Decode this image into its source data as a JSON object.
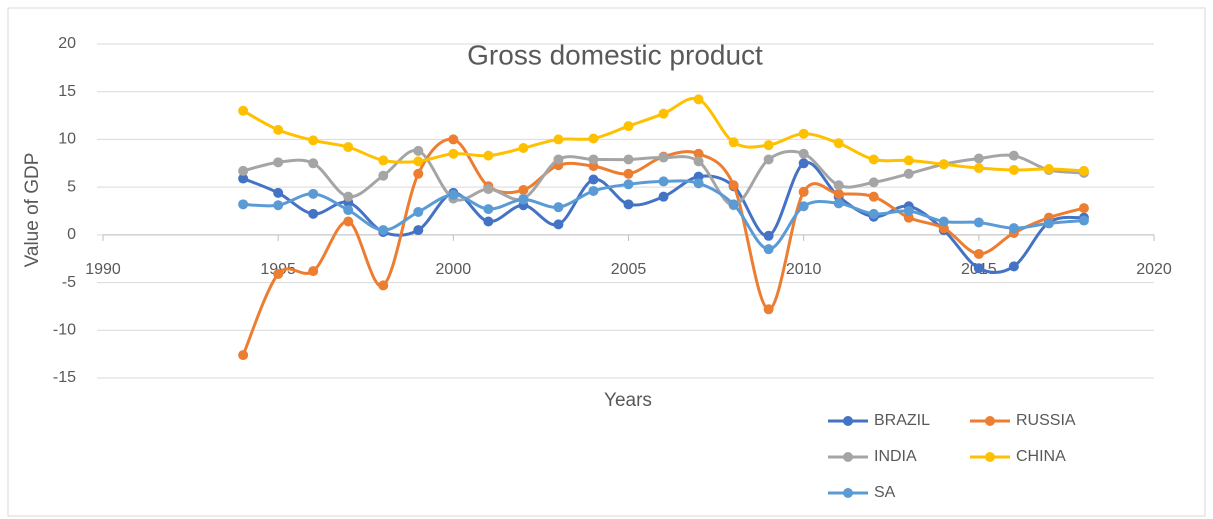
{
  "chart_data": {
    "type": "line",
    "title": "Gross domestic product",
    "x_label": "Years",
    "y_label": "Value of GDP",
    "x": [
      1994,
      1995,
      1996,
      1997,
      1998,
      1999,
      2000,
      2001,
      2002,
      2003,
      2004,
      2005,
      2006,
      2007,
      2008,
      2009,
      2010,
      2011,
      2012,
      2013,
      2014,
      2015,
      2016,
      2017,
      2018
    ],
    "series": [
      {
        "name": "BRAZIL",
        "color": "#4472c4",
        "values": [
          5.9,
          4.4,
          2.2,
          3.4,
          0.3,
          0.5,
          4.4,
          1.4,
          3.1,
          1.1,
          5.8,
          3.2,
          4.0,
          6.1,
          5.1,
          -0.1,
          7.5,
          4.0,
          1.9,
          3.0,
          0.5,
          -3.5,
          -3.3,
          1.3,
          1.8
        ]
      },
      {
        "name": "RUSSIA",
        "color": "#ed7d31",
        "values": [
          -12.6,
          -4.1,
          -3.8,
          1.4,
          -5.3,
          6.4,
          10.0,
          5.1,
          4.7,
          7.3,
          7.2,
          6.4,
          8.2,
          8.5,
          5.2,
          -7.8,
          4.5,
          4.3,
          4.0,
          1.8,
          0.7,
          -2.0,
          0.2,
          1.8,
          2.8
        ]
      },
      {
        "name": "INDIA",
        "color": "#a5a5a5",
        "values": [
          6.7,
          7.6,
          7.5,
          4.0,
          6.2,
          8.8,
          3.8,
          4.8,
          3.8,
          7.9,
          7.9,
          7.9,
          8.1,
          7.7,
          3.1,
          7.9,
          8.5,
          5.2,
          5.5,
          6.4,
          7.4,
          8.0,
          8.3,
          6.8,
          6.5
        ]
      },
      {
        "name": "CHINA",
        "color": "#ffc000",
        "values": [
          13.0,
          11.0,
          9.9,
          9.2,
          7.8,
          7.7,
          8.5,
          8.3,
          9.1,
          10.0,
          10.1,
          11.4,
          12.7,
          14.2,
          9.7,
          9.4,
          10.6,
          9.6,
          7.9,
          7.8,
          7.4,
          7.0,
          6.8,
          6.9,
          6.7
        ]
      },
      {
        "name": "SA",
        "color": "#5b9bd5",
        "values": [
          3.2,
          3.1,
          4.3,
          2.6,
          0.5,
          2.4,
          4.2,
          2.7,
          3.7,
          2.9,
          4.6,
          5.3,
          5.6,
          5.4,
          3.2,
          -1.5,
          3.0,
          3.3,
          2.2,
          2.5,
          1.4,
          1.3,
          0.7,
          1.2,
          1.5
        ]
      }
    ],
    "xlim": [
      1990,
      2020
    ],
    "xticks": [
      1990,
      1995,
      2000,
      2005,
      2010,
      2015,
      2020
    ],
    "ylim": [
      -15,
      20
    ],
    "yticks": [
      -15,
      -10,
      -5,
      0,
      5,
      10,
      15,
      20
    ],
    "grid": true,
    "smooth": true
  }
}
